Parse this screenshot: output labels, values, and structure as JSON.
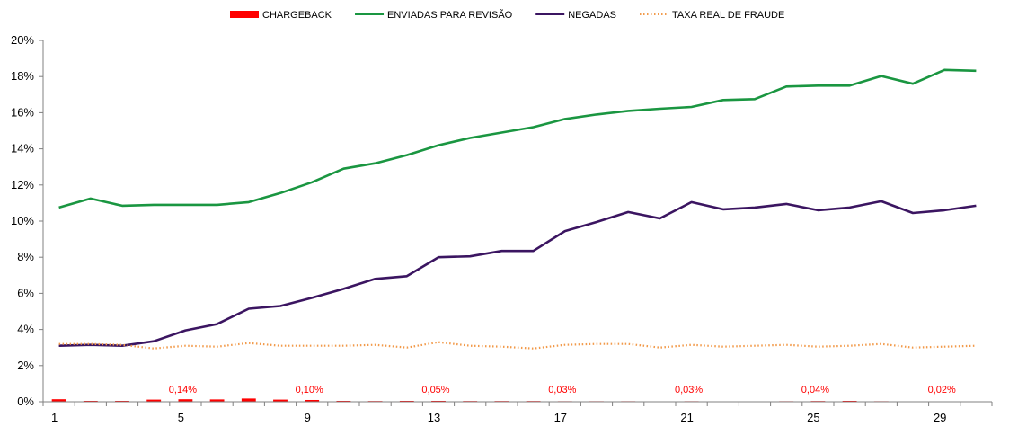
{
  "chart_data": {
    "type": "line",
    "x": [
      1,
      2,
      3,
      4,
      5,
      6,
      7,
      8,
      9,
      10,
      11,
      12,
      13,
      14,
      15,
      16,
      17,
      18,
      19,
      20,
      21,
      22,
      23,
      24,
      25,
      26,
      27,
      28,
      29,
      30
    ],
    "x_tick_labels": [
      "1",
      "5",
      "9",
      "13",
      "17",
      "21",
      "25",
      "29"
    ],
    "x_tick_values": [
      1,
      5,
      9,
      13,
      17,
      21,
      25,
      29
    ],
    "y_tick_labels": [
      "0%",
      "2%",
      "4%",
      "6%",
      "8%",
      "10%",
      "12%",
      "14%",
      "16%",
      "18%",
      "20%"
    ],
    "ylim": [
      0,
      20
    ],
    "y_unit": "%",
    "legend_position": "top",
    "grid": false,
    "series": [
      {
        "name": "CHARGEBACK",
        "kind": "bar",
        "color": "#ff0000",
        "values": [
          0.14,
          0.05,
          0.05,
          0.12,
          0.14,
          0.13,
          0.18,
          0.12,
          0.1,
          0.05,
          0.04,
          0.05,
          0.05,
          0.04,
          0.04,
          0.04,
          0.03,
          0.03,
          0.03,
          0.02,
          0.03,
          0.02,
          0.02,
          0.03,
          0.04,
          0.05,
          0.03,
          0.02,
          0.02,
          0.02
        ]
      },
      {
        "name": "ENVIADAS PARA REVISÃO",
        "kind": "line",
        "color": "#1a9641",
        "values": [
          10.75,
          11.25,
          10.85,
          10.9,
          10.9,
          10.9,
          11.05,
          11.55,
          12.15,
          12.9,
          13.2,
          13.65,
          14.2,
          14.6,
          14.9,
          15.2,
          15.65,
          15.9,
          16.1,
          16.22,
          16.32,
          16.7,
          16.75,
          17.45,
          17.5,
          17.5,
          18.03,
          17.6,
          18.37,
          18.32
        ]
      },
      {
        "name": "NEGADAS",
        "kind": "line",
        "color": "#3b1561",
        "values": [
          3.1,
          3.15,
          3.1,
          3.35,
          3.95,
          4.3,
          5.15,
          5.3,
          5.75,
          6.25,
          6.8,
          6.95,
          8.0,
          8.05,
          8.35,
          8.35,
          9.45,
          9.95,
          10.5,
          10.15,
          11.05,
          10.65,
          10.75,
          10.95,
          10.6,
          10.75,
          11.1,
          10.45,
          10.6,
          10.85
        ]
      },
      {
        "name": "TAXA REAL DE FRAUDE",
        "kind": "dotted",
        "color": "#f29a4a",
        "values": [
          3.2,
          3.2,
          3.15,
          2.95,
          3.1,
          3.05,
          3.25,
          3.1,
          3.1,
          3.1,
          3.15,
          3.0,
          3.3,
          3.1,
          3.05,
          2.95,
          3.15,
          3.2,
          3.2,
          3.0,
          3.15,
          3.05,
          3.1,
          3.15,
          3.05,
          3.1,
          3.2,
          3.0,
          3.05,
          3.1
        ]
      }
    ],
    "data_labels": [
      {
        "x": 5,
        "text": "0,14%"
      },
      {
        "x": 9,
        "text": "0,10%"
      },
      {
        "x": 13,
        "text": "0,05%"
      },
      {
        "x": 17,
        "text": "0,03%"
      },
      {
        "x": 21,
        "text": "0,03%"
      },
      {
        "x": 25,
        "text": "0,04%"
      },
      {
        "x": 29,
        "text": "0,02%"
      }
    ],
    "data_label_color": "#ff0000"
  }
}
